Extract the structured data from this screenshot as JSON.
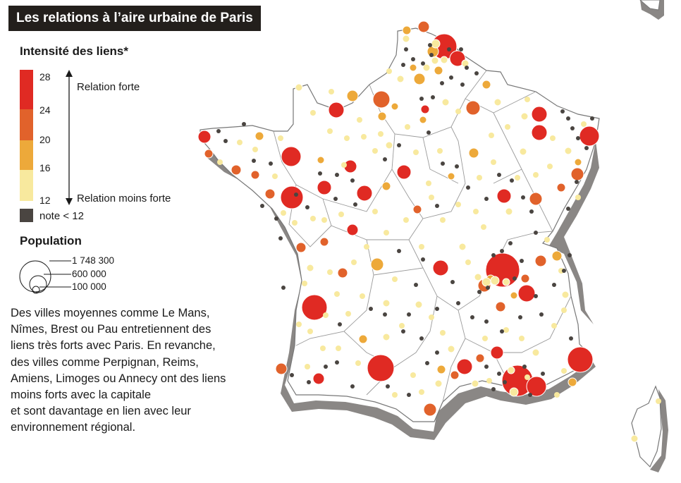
{
  "title": "Les relations à l’aire urbaine de Paris",
  "legend": {
    "intensity_title": "Intensité des liens*",
    "scale_values": [
      "28",
      "24",
      "20",
      "16",
      "12"
    ],
    "strong_label": "Relation forte",
    "weak_label": "Relation moins forte",
    "below_label": "note < 12",
    "colors": {
      "class_24_28": "#e02a23",
      "class_20_24": "#e1622b",
      "class_16_20": "#eda93a",
      "class_12_16": "#f8e99e",
      "below_12": "#4a4541",
      "land": "#ffffff",
      "border": "#9a9a9a",
      "relief": "#8a8785"
    },
    "population_title": "Population",
    "population_values": [
      "1 748 300",
      "600 000",
      "100 000"
    ]
  },
  "description": [
    "Des villes moyennes comme Le Mans,",
    "Nîmes, Brest ou Pau entretiennent des",
    "liens très forts avec Paris. En revanche,",
    "des villes comme Perpignan, Reims,",
    "Amiens, Limoges ou Annecy ont des liens",
    "moins forts avec la capitale",
    "et sont davantage en lien avec leur",
    "environnement régional."
  ]
}
